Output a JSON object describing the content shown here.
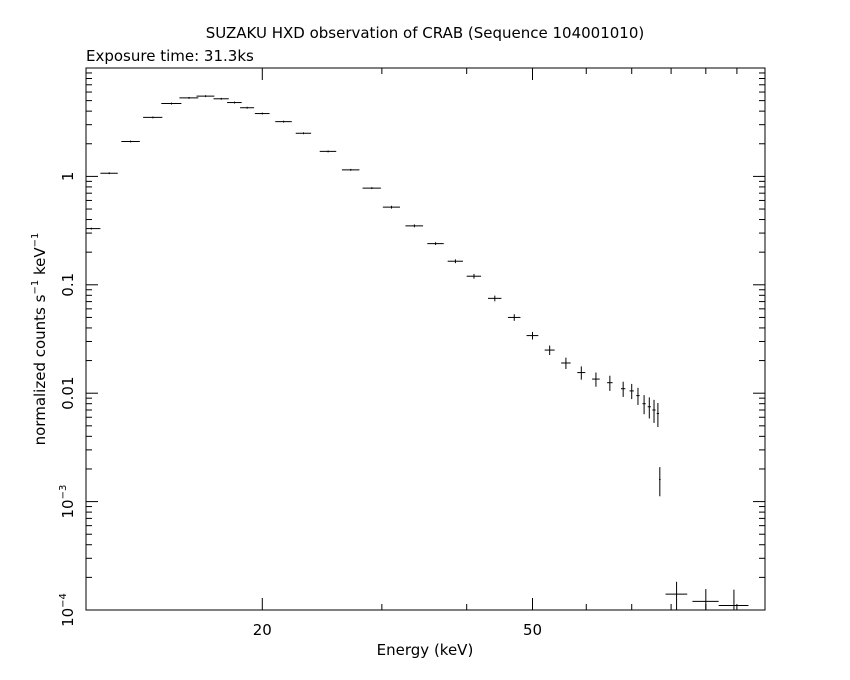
{
  "chart_data": {
    "type": "scatter",
    "title": "SUZAKU HXD observation of CRAB (Sequence 104001010)",
    "subtitle": "Exposure time: 31.3ks",
    "xlabel": "Energy (keV)",
    "ylabel_main": "normalized counts s",
    "ylabel_unit": " keV",
    "ylabel_exp": "−1",
    "x_scale": "log",
    "y_scale": "log",
    "xlim": [
      11,
      110
    ],
    "ylim": [
      0.0001,
      10
    ],
    "x_ticks_major": [
      {
        "value": 20,
        "label": "20"
      },
      {
        "value": 50,
        "label": "50"
      }
    ],
    "y_ticks_major": [
      {
        "value": 1,
        "label": "1",
        "sup": ""
      },
      {
        "value": 0.1,
        "label": "0.1",
        "sup": ""
      },
      {
        "value": 0.01,
        "label": "0.01",
        "sup": ""
      },
      {
        "value": 0.001,
        "label": "10",
        "sup": "−3"
      },
      {
        "value": 0.0001,
        "label": "10",
        "sup": "−4"
      }
    ],
    "grid": false,
    "legend": "none",
    "marker_color": "#000000",
    "series": [
      {
        "x": [
          11.2,
          11.9,
          12.8,
          13.8,
          14.7,
          15.6,
          16.5,
          17.4,
          18.2,
          19.0,
          20.0,
          21.5,
          23.0,
          25.0,
          27.0,
          29.0,
          31.0,
          33.5,
          36.0,
          38.5,
          41.0,
          44.0,
          47.0,
          50.0,
          53.0,
          56.0,
          59.0,
          62.0,
          65.0,
          68.0,
          70.0,
          71.5,
          73.0,
          74.3,
          75.5,
          76.5,
          77.0,
          81.5,
          90.0,
          99.0
        ],
        "y": [
          0.33,
          1.07,
          2.1,
          3.5,
          4.7,
          5.3,
          5.5,
          5.2,
          4.8,
          4.3,
          3.8,
          3.2,
          2.5,
          1.7,
          1.15,
          0.78,
          0.52,
          0.35,
          0.24,
          0.165,
          0.12,
          0.075,
          0.05,
          0.034,
          0.025,
          0.019,
          0.0155,
          0.0135,
          0.0125,
          0.011,
          0.0105,
          0.0095,
          0.008,
          0.0075,
          0.007,
          0.0065,
          0.0016,
          0.00014,
          0.00012,
          0.00011
        ],
        "xerr": [
          0.35,
          0.35,
          0.4,
          0.45,
          0.5,
          0.5,
          0.5,
          0.45,
          0.45,
          0.45,
          0.5,
          0.6,
          0.6,
          0.7,
          0.8,
          0.9,
          0.9,
          1.0,
          1.0,
          1.0,
          1.0,
          1.0,
          1.0,
          1.0,
          0.9,
          0.9,
          0.8,
          0.8,
          0.6,
          0.5,
          0.5,
          0.4,
          0.4,
          0.4,
          0.4,
          0.3,
          0.2,
          3.0,
          4.0,
          5.0
        ],
        "yerr_frac": [
          0.02,
          0.02,
          0.02,
          0.02,
          0.02,
          0.02,
          0.02,
          0.02,
          0.02,
          0.02,
          0.02,
          0.02,
          0.02,
          0.02,
          0.02,
          0.02,
          0.03,
          0.03,
          0.03,
          0.04,
          0.05,
          0.06,
          0.07,
          0.08,
          0.1,
          0.12,
          0.14,
          0.15,
          0.16,
          0.16,
          0.16,
          0.18,
          0.2,
          0.22,
          0.24,
          0.25,
          0.3,
          0.3,
          0.3,
          0.4
        ]
      }
    ]
  }
}
